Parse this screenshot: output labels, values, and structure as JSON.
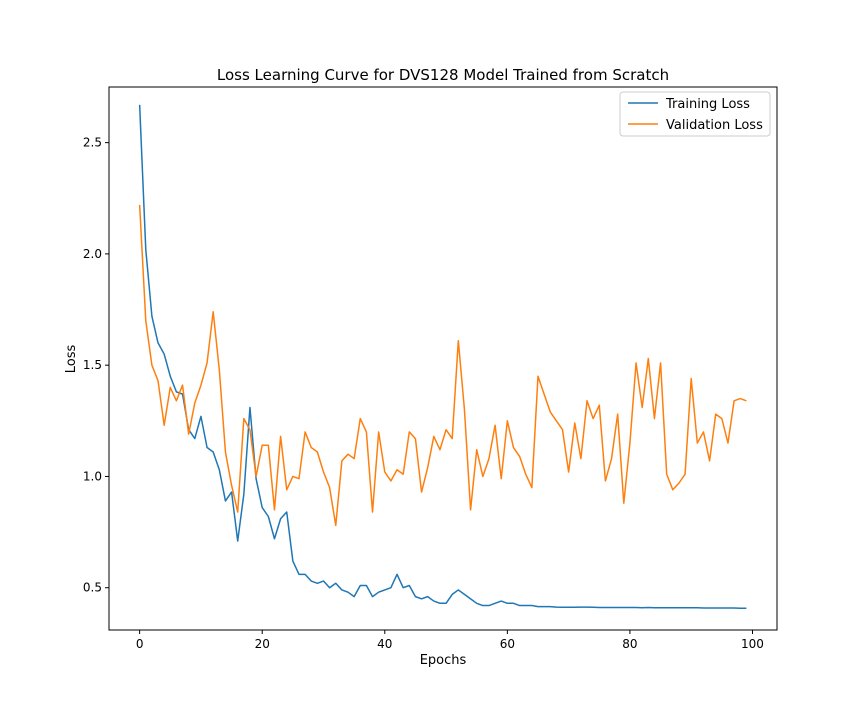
{
  "chart_data": {
    "type": "line",
    "title": "Loss Learning Curve for DVS128 Model Trained from Scratch",
    "xlabel": "Epochs",
    "ylabel": "Loss",
    "xlim": [
      -5,
      104
    ],
    "ylim": [
      0.31,
      2.75
    ],
    "xticks": [
      0,
      20,
      40,
      60,
      80,
      100
    ],
    "xtick_labels": [
      "0",
      "20",
      "40",
      "60",
      "80",
      "100"
    ],
    "yticks": [
      0.5,
      1.0,
      1.5,
      2.0,
      2.5
    ],
    "ytick_labels": [
      "0.5",
      "1.0",
      "1.5",
      "2.0",
      "2.5"
    ],
    "grid": false,
    "legend_position": "top-right",
    "series": [
      {
        "name": "Training Loss",
        "color": "#1f77b4",
        "values": [
          2.67,
          2.02,
          1.72,
          1.6,
          1.55,
          1.45,
          1.38,
          1.37,
          1.21,
          1.17,
          1.27,
          1.13,
          1.11,
          1.03,
          0.89,
          0.93,
          0.71,
          0.92,
          1.31,
          0.99,
          0.86,
          0.82,
          0.72,
          0.81,
          0.84,
          0.62,
          0.56,
          0.56,
          0.53,
          0.52,
          0.53,
          0.5,
          0.52,
          0.49,
          0.48,
          0.46,
          0.51,
          0.51,
          0.46,
          0.48,
          0.49,
          0.5,
          0.56,
          0.5,
          0.51,
          0.46,
          0.45,
          0.46,
          0.44,
          0.43,
          0.43,
          0.47,
          0.49,
          0.47,
          0.45,
          0.43,
          0.42,
          0.42,
          0.43,
          0.44,
          0.43,
          0.43,
          0.42,
          0.42,
          0.42,
          0.415,
          0.415,
          0.415,
          0.413,
          0.412,
          0.412,
          0.412,
          0.413,
          0.413,
          0.412,
          0.411,
          0.411,
          0.411,
          0.411,
          0.411,
          0.411,
          0.411,
          0.41,
          0.411,
          0.41,
          0.41,
          0.41,
          0.41,
          0.41,
          0.41,
          0.41,
          0.41,
          0.409,
          0.409,
          0.409,
          0.409,
          0.409,
          0.409,
          0.408,
          0.408
        ]
      },
      {
        "name": "Validation Loss",
        "color": "#ff7f0e",
        "values": [
          2.22,
          1.7,
          1.5,
          1.43,
          1.23,
          1.4,
          1.34,
          1.41,
          1.19,
          1.33,
          1.41,
          1.51,
          1.74,
          1.48,
          1.11,
          0.96,
          0.84,
          1.26,
          1.21,
          1.0,
          1.14,
          1.14,
          0.85,
          1.18,
          0.94,
          1.0,
          0.99,
          1.2,
          1.13,
          1.11,
          1.02,
          0.95,
          0.78,
          1.07,
          1.1,
          1.08,
          1.26,
          1.2,
          0.84,
          1.2,
          1.02,
          0.98,
          1.03,
          1.01,
          1.2,
          1.17,
          0.93,
          1.04,
          1.18,
          1.12,
          1.21,
          1.17,
          1.61,
          1.3,
          0.85,
          1.12,
          1.0,
          1.08,
          1.23,
          0.99,
          1.25,
          1.13,
          1.09,
          1.01,
          0.95,
          1.45,
          1.37,
          1.29,
          1.25,
          1.21,
          1.02,
          1.24,
          1.08,
          1.34,
          1.26,
          1.32,
          0.98,
          1.08,
          1.28,
          0.88,
          1.15,
          1.51,
          1.31,
          1.53,
          1.26,
          1.51,
          1.01,
          0.94,
          0.97,
          1.01,
          1.44,
          1.15,
          1.2,
          1.07,
          1.28,
          1.26,
          1.15,
          1.34,
          1.35,
          1.34
        ]
      }
    ]
  }
}
